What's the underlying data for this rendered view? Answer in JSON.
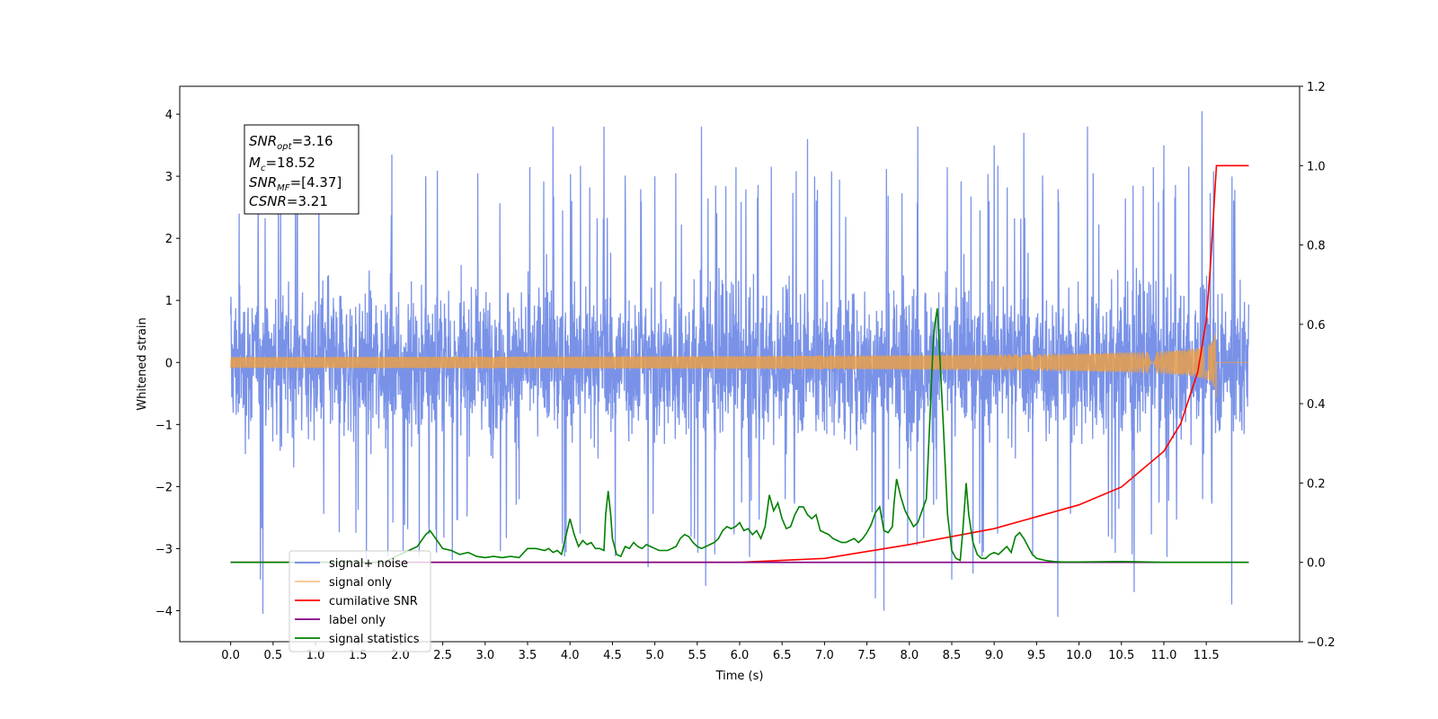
{
  "chart_data": {
    "type": "line",
    "xlabel": "Time (s)",
    "ylabel": "Whitened strain",
    "xlim": [
      -0.6,
      12.6
    ],
    "ylim": [
      -4.5,
      4.45
    ],
    "y2lim": [
      -0.2,
      1.2
    ],
    "x_ticks": [
      "0.0",
      "0.5",
      "1.0",
      "1.5",
      "2.0",
      "2.5",
      "3.0",
      "3.5",
      "4.0",
      "4.5",
      "5.0",
      "5.5",
      "6.0",
      "6.5",
      "7.0",
      "7.5",
      "8.0",
      "8.5",
      "9.0",
      "9.5",
      "10.0",
      "10.5",
      "11.0",
      "11.5"
    ],
    "y_ticks": [
      "4",
      "3",
      "2",
      "1",
      "0",
      "−1",
      "−2",
      "−3",
      "−4"
    ],
    "y2_ticks": [
      "1.2",
      "1.0",
      "0.8",
      "0.6",
      "0.4",
      "0.2",
      "0.0",
      "−0.2"
    ],
    "legend_position": "lower-left",
    "stats_box": [
      {
        "sym": "SNR",
        "sub": "opt",
        "value": "=3.16"
      },
      {
        "sym": "M",
        "sub": "c",
        "value": "=18.52"
      },
      {
        "sym": "SNR",
        "sub": "MF",
        "value": "=[4.37]"
      },
      {
        "sym": "CSNR",
        "sub": "",
        "value": "=3.21"
      }
    ],
    "series": [
      {
        "name": "signal+ noise",
        "axis": "left",
        "color": "#6a86e6",
        "pattern": "noise",
        "x_range": [
          0.0,
          12.0
        ],
        "envelope_typical": [
          -2.4,
          2.4
        ],
        "spikes": [
          [
            0.1,
            2.4
          ],
          [
            0.35,
            -3.5
          ],
          [
            0.38,
            -4.05
          ],
          [
            1.6,
            -3.35
          ],
          [
            1.9,
            3.35
          ],
          [
            2.3,
            3.0
          ],
          [
            3.8,
            3.8
          ],
          [
            4.4,
            3.8
          ],
          [
            4.92,
            -3.3
          ],
          [
            5.0,
            3.0
          ],
          [
            5.55,
            3.8
          ],
          [
            5.6,
            -3.6
          ],
          [
            6.8,
            3.6
          ],
          [
            7.6,
            -3.8
          ],
          [
            7.7,
            -4.0
          ],
          [
            8.1,
            3.8
          ],
          [
            8.5,
            -3.5
          ],
          [
            8.75,
            -3.4
          ],
          [
            9.0,
            3.5
          ],
          [
            9.35,
            3.7
          ],
          [
            9.75,
            -4.1
          ],
          [
            10.1,
            3.8
          ],
          [
            10.65,
            -3.7
          ],
          [
            11.0,
            3.5
          ],
          [
            11.45,
            4.05
          ],
          [
            11.8,
            -3.9
          ]
        ]
      },
      {
        "name": "signal only",
        "axis": "left",
        "color": "#f0a040",
        "pattern": "chirp",
        "x_range": [
          0.0,
          12.0
        ],
        "merger_time": 11.62,
        "peak_amplitude": 0.65,
        "post_merger": 0.0
      },
      {
        "name": "cumilative SNR",
        "axis": "right",
        "color": "#ff0000",
        "pattern": "cumulative",
        "x": [
          0.0,
          6.0,
          7.0,
          8.0,
          9.0,
          10.0,
          10.5,
          11.0,
          11.2,
          11.4,
          11.5,
          11.55,
          11.6,
          11.62,
          12.0
        ],
        "y": [
          0.0,
          0.0,
          0.01,
          0.045,
          0.085,
          0.145,
          0.19,
          0.28,
          0.35,
          0.48,
          0.61,
          0.75,
          0.93,
          1.0,
          1.0
        ]
      },
      {
        "name": "label only",
        "axis": "right",
        "color": "#800080",
        "pattern": "flat",
        "x": [
          0.0,
          12.0
        ],
        "y": [
          0.0,
          0.0
        ]
      },
      {
        "name": "signal statistics",
        "axis": "right",
        "color": "#008000",
        "pattern": "line",
        "x": [
          0.0,
          1.8,
          1.9,
          2.0,
          2.1,
          2.2,
          2.3,
          2.35,
          2.45,
          2.5,
          2.6,
          2.7,
          2.8,
          2.9,
          3.0,
          3.1,
          3.2,
          3.3,
          3.4,
          3.5,
          3.6,
          3.7,
          3.75,
          3.8,
          3.85,
          3.9,
          4.0,
          4.05,
          4.1,
          4.15,
          4.2,
          4.25,
          4.3,
          4.35,
          4.4,
          4.42,
          4.45,
          4.48,
          4.5,
          4.55,
          4.6,
          4.65,
          4.7,
          4.75,
          4.8,
          4.85,
          4.9,
          4.95,
          5.0,
          5.05,
          5.1,
          5.15,
          5.2,
          5.25,
          5.3,
          5.35,
          5.4,
          5.45,
          5.5,
          5.55,
          5.6,
          5.65,
          5.7,
          5.75,
          5.8,
          5.85,
          5.9,
          5.95,
          6.0,
          6.05,
          6.1,
          6.15,
          6.2,
          6.25,
          6.3,
          6.35,
          6.4,
          6.45,
          6.5,
          6.55,
          6.6,
          6.65,
          6.7,
          6.75,
          6.8,
          6.85,
          6.9,
          6.95,
          7.0,
          7.05,
          7.1,
          7.15,
          7.2,
          7.25,
          7.3,
          7.35,
          7.4,
          7.45,
          7.5,
          7.55,
          7.6,
          7.65,
          7.7,
          7.75,
          7.8,
          7.82,
          7.85,
          7.9,
          7.95,
          8.0,
          8.05,
          8.1,
          8.15,
          8.2,
          8.25,
          8.28,
          8.3,
          8.33,
          8.35,
          8.4,
          8.45,
          8.5,
          8.55,
          8.6,
          8.63,
          8.67,
          8.7,
          8.75,
          8.8,
          8.85,
          8.9,
          8.95,
          9.0,
          9.05,
          9.1,
          9.15,
          9.2,
          9.25,
          9.3,
          9.35,
          9.4,
          9.45,
          9.5,
          9.6,
          9.7,
          9.8,
          10.0,
          10.5,
          10.8,
          11.0,
          12.0
        ],
        "y": [
          0.0,
          0.0,
          0.01,
          0.02,
          0.03,
          0.04,
          0.07,
          0.08,
          0.05,
          0.035,
          0.03,
          0.02,
          0.025,
          0.015,
          0.012,
          0.015,
          0.012,
          0.015,
          0.012,
          0.035,
          0.035,
          0.03,
          0.035,
          0.025,
          0.03,
          0.02,
          0.11,
          0.07,
          0.04,
          0.055,
          0.045,
          0.05,
          0.035,
          0.035,
          0.03,
          0.12,
          0.18,
          0.12,
          0.06,
          0.02,
          0.015,
          0.04,
          0.035,
          0.05,
          0.04,
          0.035,
          0.045,
          0.04,
          0.035,
          0.03,
          0.03,
          0.03,
          0.035,
          0.04,
          0.06,
          0.07,
          0.065,
          0.05,
          0.04,
          0.035,
          0.04,
          0.045,
          0.05,
          0.06,
          0.08,
          0.09,
          0.085,
          0.09,
          0.1,
          0.08,
          0.085,
          0.07,
          0.08,
          0.06,
          0.09,
          0.17,
          0.13,
          0.15,
          0.11,
          0.085,
          0.09,
          0.12,
          0.14,
          0.14,
          0.12,
          0.11,
          0.12,
          0.08,
          0.075,
          0.07,
          0.06,
          0.055,
          0.05,
          0.05,
          0.055,
          0.06,
          0.05,
          0.06,
          0.075,
          0.095,
          0.125,
          0.14,
          0.08,
          0.075,
          0.09,
          0.15,
          0.21,
          0.165,
          0.13,
          0.11,
          0.09,
          0.1,
          0.13,
          0.16,
          0.4,
          0.55,
          0.6,
          0.64,
          0.56,
          0.35,
          0.12,
          0.03,
          0.01,
          0.005,
          0.08,
          0.2,
          0.12,
          0.05,
          0.02,
          0.01,
          0.01,
          0.02,
          0.025,
          0.02,
          0.03,
          0.04,
          0.025,
          0.065,
          0.075,
          0.06,
          0.04,
          0.02,
          0.01,
          0.005,
          0.002,
          0.001,
          0.001,
          0.002,
          0.001,
          0.0,
          0.0
        ]
      }
    ]
  }
}
